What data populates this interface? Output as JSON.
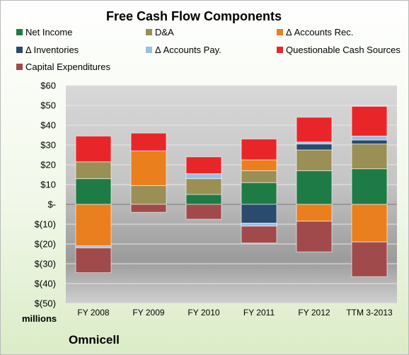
{
  "chart_data": {
    "type": "bar",
    "stacked": true,
    "title": "Free Cash Flow Components",
    "units_label": "millions",
    "categories": [
      "FY 2008",
      "FY 2009",
      "FY 2010",
      "FY 2011",
      "FY 2012",
      "TTM 3-2013"
    ],
    "ylim": [
      -50,
      60
    ],
    "y_ticks": [
      60,
      50,
      40,
      30,
      20,
      10,
      0,
      -10,
      -20,
      -30,
      -40,
      -50
    ],
    "y_tick_labels": [
      "$60",
      "$50",
      "$40",
      "$30",
      "$20",
      "$10",
      "$-",
      "$(10)",
      "$(20)",
      "$(30)",
      "$(40)",
      "$(50)"
    ],
    "grid": true,
    "legend_position": "top",
    "series": [
      {
        "name": "Net Income",
        "color": "#1e7b45",
        "values": [
          13,
          0,
          5,
          11,
          17,
          18
        ]
      },
      {
        "name": "D&A",
        "color": "#9a8f55",
        "values": [
          8.5,
          9.5,
          8,
          6,
          10.5,
          12.5
        ]
      },
      {
        "name": "Δ Accounts Rec.",
        "color": "#ea7f1e",
        "values": [
          -21,
          17.5,
          0,
          5.5,
          -8.5,
          -19
        ]
      },
      {
        "name": "Δ Inventories",
        "color": "#2a4a6e",
        "values": [
          0,
          0,
          0,
          -9.5,
          3,
          2
        ]
      },
      {
        "name": "Δ Accounts Pay.",
        "color": "#9bbfe3",
        "values": [
          -1,
          0,
          2.5,
          -1.5,
          1,
          2
        ]
      },
      {
        "name": "Questionable Cash Sources",
        "color": "#e8262a",
        "values": [
          13,
          9,
          8.5,
          10.5,
          12.5,
          15
        ]
      },
      {
        "name": "Capital Expenditures",
        "color": "#a04a4c",
        "values": [
          -12.5,
          -4,
          -7.5,
          -8.5,
          -15.5,
          -17.5
        ]
      }
    ]
  },
  "brand_label": "Omnicell"
}
